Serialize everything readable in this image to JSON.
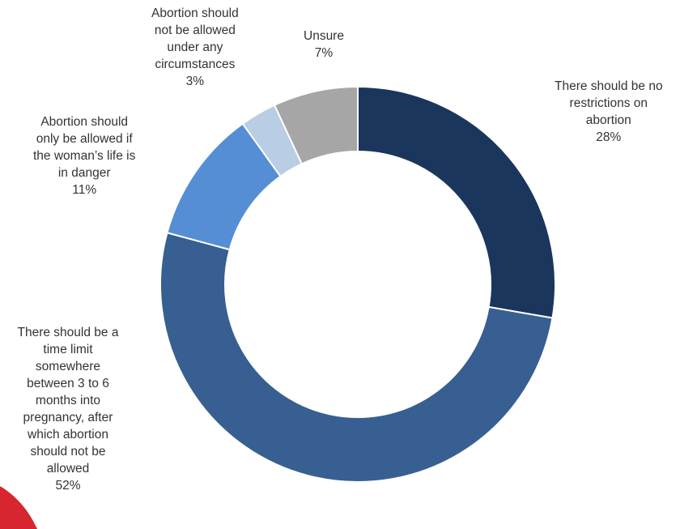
{
  "chart_data": {
    "type": "pie",
    "variant": "donut",
    "categories": [
      "There should be no restrictions on abortion",
      "There should be a time limit somewhere between 3 to 6 months into pregnancy, after which abortion should not be allowed",
      "Abortion should only be allowed if the woman’s life is in danger",
      "Abortion should not be allowed under any circumstances",
      "Unsure"
    ],
    "values": [
      28,
      52,
      11,
      3,
      7
    ],
    "value_labels": [
      "28%",
      "52%",
      "11%",
      "3%",
      "7%"
    ],
    "colors": [
      "#1b365d",
      "#375f91",
      "#558ed5",
      "#b9cde5",
      "#a6a6a6"
    ],
    "label_lines": [
      [
        "There should be no",
        "restrictions on",
        "abortion"
      ],
      [
        "There should be a",
        "time limit",
        "somewhere",
        "between 3 to 6",
        "months into",
        "pregnancy, after",
        "which abortion",
        "should not be",
        "allowed"
      ],
      [
        "Abortion should",
        "only be allowed if",
        "the woman’s life is",
        "in danger"
      ],
      [
        "Abortion should",
        "not be allowed",
        "under any",
        "circumstances"
      ],
      [
        "Unsure"
      ]
    ],
    "title": "",
    "legend": "none"
  }
}
